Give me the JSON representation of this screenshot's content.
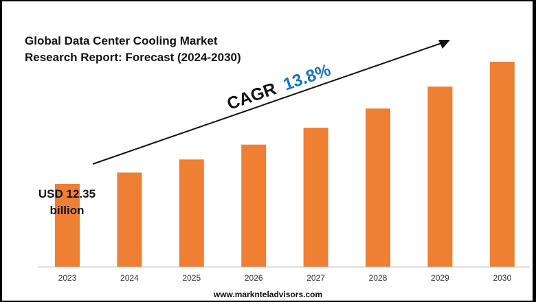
{
  "title_lines": [
    "Global Data Center Cooling Market",
    "Research Report: Forecast (2024-2030)"
  ],
  "cagr": {
    "label": "CAGR",
    "value": "13.8%",
    "label_color": "#111111",
    "value_color": "#1a73c4"
  },
  "start_value_lines": [
    "USD 12.35",
    "billion"
  ],
  "footer": "www.marknteladvisors.com",
  "colors": {
    "bar": "#ef7f33",
    "axis": "#bfbfbf",
    "arrow": "#111111",
    "background": "#ffffff"
  },
  "chart_data": {
    "type": "bar",
    "title": "Global Data Center Cooling Market Research Report: Forecast (2024-2030)",
    "categories": [
      "2023",
      "2024",
      "2025",
      "2026",
      "2027",
      "2028",
      "2029",
      "2030"
    ],
    "values": [
      12.35,
      14.05,
      15.99,
      18.2,
      20.71,
      23.57,
      26.82,
      30.52
    ],
    "value_annotations": [
      {
        "category": "2023",
        "text": "USD 12.35 billion"
      }
    ],
    "growth_arrow": {
      "label": "CAGR 13.8%",
      "from": "2023",
      "to": "2030"
    },
    "xlabel": "",
    "ylabel": "",
    "ylim": [
      0,
      30.52
    ],
    "grid": false,
    "legend": "none"
  }
}
